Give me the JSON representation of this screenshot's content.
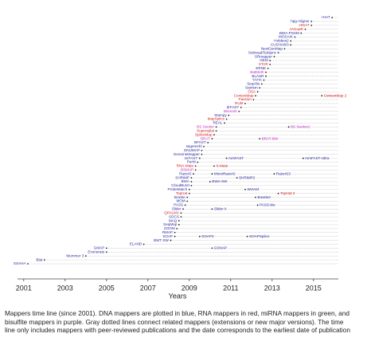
{
  "chart_data": {
    "type": "timeline",
    "xlabel": "Years",
    "xlim": [
      2000.7,
      2016.2
    ],
    "xticks": [
      2001,
      2003,
      2005,
      2007,
      2009,
      2011,
      2013,
      2015
    ],
    "line_color": "#aaaaaa",
    "point_color": "#222222",
    "mappers": [
      {
        "name": "rHAT",
        "color": "#2b2b9e",
        "year": 2015.9
      },
      {
        "name": "hpg-Aligner",
        "color": "#2b2b9e",
        "year": 2014.9
      },
      {
        "name": "HISAT",
        "color": "#d42020",
        "year": 2014.9
      },
      {
        "name": "JAGuaR",
        "color": "#d42020",
        "year": 2014.6
      },
      {
        "name": "BWA-PSSM",
        "color": "#2b2b9e",
        "year": 2014.4
      },
      {
        "name": "MOSAIK",
        "color": "#2b2b9e",
        "year": 2014.1
      },
      {
        "name": "Hobbes2",
        "color": "#2b2b9e",
        "year": 2013.9
      },
      {
        "name": "CUSHAW3",
        "color": "#2b2b9e",
        "year": 2013.9
      },
      {
        "name": "NextGenMap",
        "color": "#2b2b9e",
        "year": 2013.6
      },
      {
        "name": "Subread/Subjunc",
        "color": "#2b2b9e",
        "year": 2013.3
      },
      {
        "name": "SRmapper",
        "color": "#2b2b9e",
        "year": 2013.1
      },
      {
        "name": "GEM",
        "color": "#2b2b9e",
        "year": 2012.9
      },
      {
        "name": "STAR",
        "color": "#d42020",
        "year": 2012.9
      },
      {
        "name": "ERNE",
        "color": "#2b2b9e",
        "year": 2012.8
      },
      {
        "name": "BatMeth",
        "color": "#c030c0",
        "year": 2012.7
      },
      {
        "name": "BLASR",
        "color": "#2b2b9e",
        "year": 2012.7
      },
      {
        "name": "YAHA",
        "color": "#2b2b9e",
        "year": 2012.6
      },
      {
        "name": "SeqAlto",
        "color": "#2b2b9e",
        "year": 2012.5
      },
      {
        "name": "Srprism",
        "color": "#2b2b9e",
        "year": 2012.4
      },
      {
        "name": "OSA",
        "color": "#d42020",
        "year": 2012.3
      },
      {
        "name": "ContextMap",
        "color": "#d42020",
        "year": 2012.2,
        "versions": [
          {
            "name": "ContextMap 2",
            "year": 2015.4
          }
        ]
      },
      {
        "name": "Passion",
        "color": "#d42020",
        "year": 2012.1
      },
      {
        "name": "RUM",
        "color": "#d42020",
        "year": 2011.7
      },
      {
        "name": "drFAST",
        "color": "#2b2b9e",
        "year": 2011.5
      },
      {
        "name": "Bismark",
        "color": "#c030c0",
        "year": 2011.4
      },
      {
        "name": "Stampy",
        "color": "#2b2b9e",
        "year": 2010.9
      },
      {
        "name": "MapSplice",
        "color": "#d42020",
        "year": 2010.8
      },
      {
        "name": "REAL",
        "color": "#2b2b9e",
        "year": 2010.7
      },
      {
        "name": "BS Seeker",
        "color": "#c030c0",
        "year": 2010.3,
        "versions": [
          {
            "name": "BS Seeker2",
            "year": 2013.8
          }
        ]
      },
      {
        "name": "Supersplat",
        "color": "#d42020",
        "year": 2010.3
      },
      {
        "name": "SpliceMap",
        "color": "#d42020",
        "year": 2010.2
      },
      {
        "name": "BRAT",
        "color": "#c030c0",
        "year": 2010.1,
        "versions": [
          {
            "name": "BRAT-BW",
            "year": 2012.4
          }
        ]
      },
      {
        "name": "BFAST",
        "color": "#2b2b9e",
        "year": 2009.9
      },
      {
        "name": "segemehl",
        "color": "#2b2b9e",
        "year": 2009.7
      },
      {
        "name": "GNUMAP",
        "color": "#2b2b9e",
        "year": 2009.6
      },
      {
        "name": "GenomeMapper",
        "color": "#2b2b9e",
        "year": 2009.6
      },
      {
        "name": "mrFAST",
        "color": "#2b2b9e",
        "year": 2009.5,
        "versions": [
          {
            "name": "mrsFAST",
            "year": 2010.8
          },
          {
            "name": "mrsFAST-Ultra",
            "year": 2014.5
          }
        ]
      },
      {
        "name": "PerM",
        "color": "#2b2b9e",
        "year": 2009.4
      },
      {
        "name": "RNA-Mate",
        "color": "#d42020",
        "year": 2009.3,
        "versions": [
          {
            "name": "X-Mate",
            "year": 2010.2
          }
        ]
      },
      {
        "name": "BSMAP",
        "color": "#c030c0",
        "year": 2009.3
      },
      {
        "name": "RazerS",
        "color": "#2b2b9e",
        "year": 2009.2,
        "versions": [
          {
            "name": "MicroRazerS",
            "year": 2010.1
          },
          {
            "name": "RazerS3",
            "year": 2013.1
          }
        ]
      },
      {
        "name": "SHRiMP",
        "color": "#2b2b9e",
        "year": 2009.1,
        "versions": [
          {
            "name": "SHRiMP2",
            "year": 2011.3
          }
        ]
      },
      {
        "name": "BWA",
        "color": "#2b2b9e",
        "year": 2009.1,
        "versions": [
          {
            "name": "BWA-SW",
            "year": 2010.0
          }
        ]
      },
      {
        "name": "CloudBurst",
        "color": "#2b2b9e",
        "year": 2009.1
      },
      {
        "name": "ProbeMatch",
        "color": "#2b2b9e",
        "year": 2009.0,
        "versions": [
          {
            "name": "WHAM",
            "year": 2011.7
          }
        ]
      },
      {
        "name": "TopHat",
        "color": "#d42020",
        "year": 2009.0,
        "versions": [
          {
            "name": "TopHat 2",
            "year": 2013.3
          }
        ]
      },
      {
        "name": "Bowtie",
        "color": "#2b2b9e",
        "year": 2008.9,
        "versions": [
          {
            "name": "Bowtie2",
            "year": 2012.2
          }
        ]
      },
      {
        "name": "MOM",
        "color": "#2b2b9e",
        "year": 2008.9
      },
      {
        "name": "PASS",
        "color": "#2b2b9e",
        "year": 2008.8,
        "versions": [
          {
            "name": "PASS-bis",
            "year": 2012.3
          }
        ]
      },
      {
        "name": "Slider",
        "color": "#2b2b9e",
        "year": 2008.7,
        "versions": [
          {
            "name": "Slider II",
            "year": 2010.1
          }
        ]
      },
      {
        "name": "QPALMA",
        "color": "#d42020",
        "year": 2008.6
      },
      {
        "name": "SOCS",
        "color": "#2b2b9e",
        "year": 2008.6
      },
      {
        "name": "MAQ",
        "color": "#2b2b9e",
        "year": 2008.5
      },
      {
        "name": "SeqMap",
        "color": "#2b2b9e",
        "year": 2008.5
      },
      {
        "name": "ZOOM",
        "color": "#2b2b9e",
        "year": 2008.4
      },
      {
        "name": "RMAP",
        "color": "#2b2b9e",
        "year": 2008.3
      },
      {
        "name": "SOAP",
        "color": "#2b2b9e",
        "year": 2008.3,
        "versions": [
          {
            "name": "SOAP2",
            "year": 2009.5
          },
          {
            "name": "SOAPSplice",
            "year": 2011.8
          }
        ]
      },
      {
        "name": "BWT-SW",
        "color": "#2b2b9e",
        "year": 2008.1
      },
      {
        "name": "ELAND",
        "color": "#2b2b9e",
        "year": 2006.8
      },
      {
        "name": "GMAP",
        "color": "#2b2b9e",
        "year": 2005.0,
        "versions": [
          {
            "name": "GSNAP",
            "year": 2010.1
          }
        ]
      },
      {
        "name": "Exonerate",
        "color": "#2b2b9e",
        "year": 2005.0
      },
      {
        "name": "Mummer 3",
        "color": "#2b2b9e",
        "year": 2004.0
      },
      {
        "name": "Blat",
        "color": "#2b2b9e",
        "year": 2002.0
      },
      {
        "name": "SSAHA",
        "color": "#2b2b9e",
        "year": 2001.2
      }
    ],
    "caption": "Mappers time line (since 2001). DNA mappers are plotted in blue, RNA mappers in red, miRNA mappers in green, and bisulfite mappers in purple. Gray dotted lines connect related mappers (extensions or new major versions). The time line only includes mappers with peer-reviewed publications and the date corresponds to the earliest date of publication"
  }
}
